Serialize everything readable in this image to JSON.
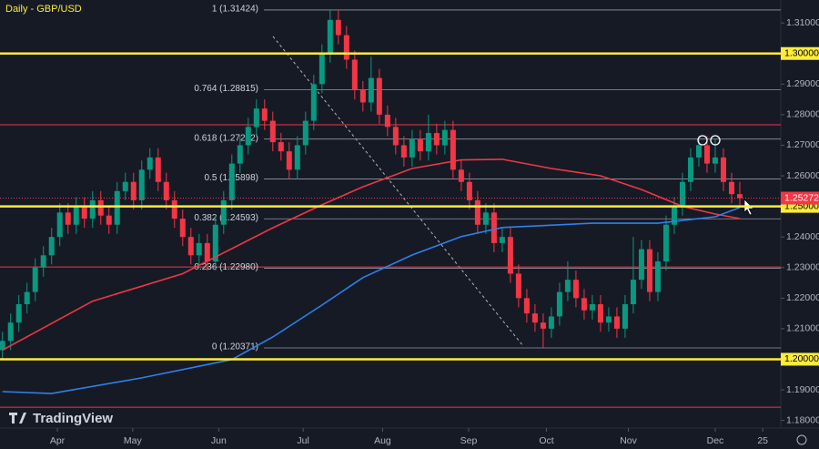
{
  "chart_data": {
    "type": "candlestick",
    "title": "Daily - GBP/USD",
    "brand": "TradingView",
    "ylim": [
      1.1775,
      1.3175
    ],
    "xlim": [
      -0.3,
      95
    ],
    "yticks": [
      {
        "value": 1.18,
        "label": "1.18000"
      },
      {
        "value": 1.19,
        "label": "1.19000"
      },
      {
        "value": 1.21,
        "label": "1.21000"
      },
      {
        "value": 1.22,
        "label": "1.22000"
      },
      {
        "value": 1.23,
        "label": "1.23000"
      },
      {
        "value": 1.24,
        "label": "1.24000"
      },
      {
        "value": 1.26,
        "label": "1.26000"
      },
      {
        "value": 1.27,
        "label": "1.27000"
      },
      {
        "value": 1.28,
        "label": "1.28000"
      },
      {
        "value": 1.29,
        "label": "1.29000"
      },
      {
        "value": 1.31,
        "label": "1.31000"
      }
    ],
    "xticks": [
      {
        "value": 6.7,
        "label": "Apr"
      },
      {
        "value": 15.9,
        "label": "May"
      },
      {
        "value": 26.4,
        "label": "Jun"
      },
      {
        "value": 36.7,
        "label": "Jul"
      },
      {
        "value": 46.4,
        "label": "Aug"
      },
      {
        "value": 56.9,
        "label": "Sep"
      },
      {
        "value": 66.4,
        "label": "Oct"
      },
      {
        "value": 76.4,
        "label": "Nov"
      },
      {
        "value": 87,
        "label": "Dec"
      },
      {
        "value": 92.8,
        "label": "25"
      }
    ],
    "up_color": "#089981",
    "down_color": "#f23645",
    "open": [
      1.203,
      1.206,
      1.212,
      1.218,
      1.222,
      1.23,
      1.234,
      1.24,
      1.248,
      1.244,
      1.25,
      1.246,
      1.252,
      1.247,
      1.244,
      1.255,
      1.258,
      1.252,
      1.262,
      1.266,
      1.258,
      1.252,
      1.246,
      1.24,
      1.234,
      1.238,
      1.232,
      1.244,
      1.252,
      1.264,
      1.27,
      1.276,
      1.282,
      1.278,
      1.271,
      1.268,
      1.262,
      1.27,
      1.278,
      1.29,
      1.3,
      1.311,
      1.306,
      1.298,
      1.288,
      1.284,
      1.292,
      1.28,
      1.276,
      1.27,
      1.266,
      1.272,
      1.268,
      1.274,
      1.27,
      1.275,
      1.262,
      1.258,
      1.252,
      1.244,
      1.248,
      1.238,
      1.24,
      1.228,
      1.22,
      1.215,
      1.212,
      1.21,
      1.214,
      1.222,
      1.226,
      1.22,
      1.216,
      1.218,
      1.212,
      1.214,
      1.21,
      1.218,
      1.226,
      1.236,
      1.222,
      1.232,
      1.244,
      1.25,
      1.258,
      1.266,
      1.27,
      1.264,
      1.266,
      1.258,
      1.254
    ],
    "high": [
      1.209,
      1.215,
      1.221,
      1.225,
      1.233,
      1.237,
      1.243,
      1.251,
      1.251,
      1.253,
      1.253,
      1.255,
      1.255,
      1.25,
      1.258,
      1.261,
      1.261,
      1.265,
      1.269,
      1.269,
      1.261,
      1.255,
      1.249,
      1.243,
      1.241,
      1.241,
      1.247,
      1.255,
      1.267,
      1.273,
      1.279,
      1.285,
      1.285,
      1.281,
      1.274,
      1.271,
      1.273,
      1.281,
      1.293,
      1.303,
      1.3142,
      1.314,
      1.309,
      1.301,
      1.291,
      1.299,
      1.295,
      1.283,
      1.279,
      1.273,
      1.275,
      1.275,
      1.28,
      1.277,
      1.278,
      1.278,
      1.265,
      1.261,
      1.255,
      1.251,
      1.251,
      1.243,
      1.243,
      1.231,
      1.223,
      1.218,
      1.215,
      1.217,
      1.225,
      1.232,
      1.229,
      1.223,
      1.221,
      1.221,
      1.217,
      1.217,
      1.221,
      1.24,
      1.239,
      1.239,
      1.235,
      1.247,
      1.253,
      1.261,
      1.269,
      1.273,
      1.273,
      1.272,
      1.269,
      1.261,
      1.258
    ],
    "low": [
      1.2,
      1.203,
      1.209,
      1.215,
      1.219,
      1.227,
      1.231,
      1.237,
      1.241,
      1.241,
      1.243,
      1.243,
      1.244,
      1.241,
      1.241,
      1.252,
      1.249,
      1.249,
      1.259,
      1.255,
      1.249,
      1.243,
      1.237,
      1.231,
      1.231,
      1.229,
      1.229,
      1.241,
      1.249,
      1.261,
      1.267,
      1.273,
      1.275,
      1.268,
      1.265,
      1.259,
      1.259,
      1.267,
      1.275,
      1.287,
      1.297,
      1.303,
      1.295,
      1.285,
      1.281,
      1.281,
      1.277,
      1.273,
      1.267,
      1.263,
      1.263,
      1.265,
      1.265,
      1.267,
      1.267,
      1.259,
      1.255,
      1.249,
      1.241,
      1.241,
      1.235,
      1.235,
      1.225,
      1.217,
      1.212,
      1.209,
      1.2037,
      1.207,
      1.211,
      1.219,
      1.217,
      1.213,
      1.213,
      1.209,
      1.209,
      1.207,
      1.207,
      1.215,
      1.223,
      1.219,
      1.219,
      1.229,
      1.241,
      1.247,
      1.255,
      1.263,
      1.261,
      1.261,
      1.255,
      1.251,
      1.25
    ],
    "close": [
      1.206,
      1.212,
      1.218,
      1.222,
      1.23,
      1.234,
      1.24,
      1.248,
      1.244,
      1.25,
      1.246,
      1.252,
      1.247,
      1.244,
      1.255,
      1.258,
      1.252,
      1.262,
      1.266,
      1.258,
      1.252,
      1.246,
      1.24,
      1.234,
      1.238,
      1.232,
      1.244,
      1.252,
      1.264,
      1.27,
      1.276,
      1.282,
      1.278,
      1.271,
      1.268,
      1.262,
      1.27,
      1.278,
      1.29,
      1.3,
      1.311,
      1.306,
      1.298,
      1.288,
      1.284,
      1.292,
      1.28,
      1.276,
      1.27,
      1.266,
      1.272,
      1.268,
      1.274,
      1.27,
      1.275,
      1.262,
      1.258,
      1.252,
      1.244,
      1.248,
      1.238,
      1.24,
      1.228,
      1.22,
      1.215,
      1.212,
      1.21,
      1.214,
      1.222,
      1.226,
      1.22,
      1.216,
      1.218,
      1.212,
      1.214,
      1.21,
      1.218,
      1.226,
      1.236,
      1.222,
      1.232,
      1.244,
      1.25,
      1.258,
      1.266,
      1.27,
      1.264,
      1.266,
      1.258,
      1.254,
      1.2527
    ],
    "lines": [
      {
        "color": "#f23645",
        "x": [
          0,
          11,
          22,
          33,
          39,
          44,
          50,
          56,
          61,
          67,
          73,
          78,
          83,
          87,
          90
        ],
        "values": [
          1.203,
          1.219,
          1.228,
          1.243,
          1.2505,
          1.2564,
          1.2624,
          1.2652,
          1.2654,
          1.2624,
          1.26,
          1.2555,
          1.25,
          1.2475,
          1.246
        ]
      },
      {
        "color": "#2f80ed",
        "x": [
          0,
          6,
          17,
          28,
          33,
          39,
          44,
          50,
          56,
          61,
          72,
          80,
          87,
          90
        ],
        "values": [
          1.1894,
          1.1888,
          1.1939,
          1.1999,
          1.2073,
          1.2177,
          1.2267,
          1.2341,
          1.2401,
          1.2431,
          1.2445,
          1.2445,
          1.2466,
          1.2496
        ]
      }
    ],
    "fib_levels": [
      {
        "label": "1 (1.31424)",
        "value": 1.31424
      },
      {
        "label": "0.764 (1.28815)",
        "value": 1.28815
      },
      {
        "label": "0.618 (1.27202)",
        "value": 1.27202
      },
      {
        "label": "0.5 (1.25898)",
        "value": 1.25898
      },
      {
        "label": "0.382 (1.24593)",
        "value": 1.24593
      },
      {
        "label": "0.236 (1.22980)",
        "value": 1.2298
      },
      {
        "label": "0 (1.20371)",
        "value": 1.20371
      }
    ],
    "fib_color": "#9598a1",
    "key_levels": [
      {
        "value": 1.3,
        "label": "1.30000"
      },
      {
        "value": 1.25,
        "label": "1.25000"
      },
      {
        "value": 1.2,
        "label": "1.20000"
      }
    ],
    "key_color": "#ffeb3b",
    "red_levels": [
      1.2767,
      1.2302,
      1.1843
    ],
    "last_price": {
      "value": 1.25272,
      "label": "1.25272"
    }
  }
}
